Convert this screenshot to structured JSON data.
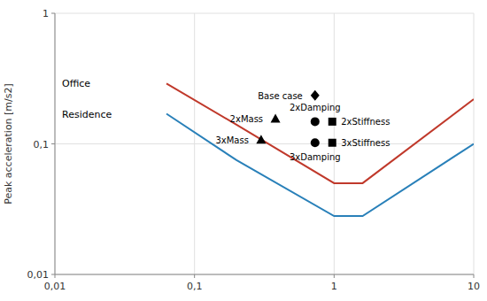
{
  "chart_data": {
    "type": "line",
    "ylabel": "Peak acceleration [m/s2]",
    "log": true,
    "grid": true,
    "xlim": [
      0.01,
      10
    ],
    "ylim": [
      0.01,
      1
    ],
    "xticks": [
      {
        "value": 0.01,
        "label": "0,01"
      },
      {
        "value": 0.1,
        "label": "0,1"
      },
      1,
      10
    ],
    "yticks": [
      {
        "value": 0.01,
        "label": "0,01"
      },
      {
        "value": 0.1,
        "label": "0,1"
      },
      1
    ],
    "series": [
      {
        "name": "Office",
        "type": "line",
        "color": "#c0392b",
        "x": [
          0.063,
          0.2,
          1.0,
          1.6,
          10
        ],
        "values": [
          0.29,
          0.14,
          0.05,
          0.05,
          0.22
        ]
      },
      {
        "name": "Residence",
        "type": "line",
        "color": "#2980b9",
        "x": [
          0.063,
          0.2,
          1.0,
          1.6,
          10
        ],
        "values": [
          0.17,
          0.075,
          0.028,
          0.028,
          0.1
        ]
      },
      {
        "name": "Base case",
        "type": "scatter",
        "marker": "diamond",
        "color": "#000000",
        "x": [
          0.73
        ],
        "values": [
          0.235
        ]
      },
      {
        "name": "2xMass",
        "type": "scatter",
        "marker": "triangle",
        "color": "#000000",
        "x": [
          0.38
        ],
        "values": [
          0.155
        ]
      },
      {
        "name": "3xMass",
        "type": "scatter",
        "marker": "triangle",
        "color": "#000000",
        "x": [
          0.3
        ],
        "values": [
          0.107
        ]
      },
      {
        "name": "2xDamping",
        "type": "scatter",
        "marker": "circle",
        "color": "#000000",
        "x": [
          0.73
        ],
        "values": [
          0.148
        ]
      },
      {
        "name": "3xDamping",
        "type": "scatter",
        "marker": "circle",
        "color": "#000000",
        "x": [
          0.73
        ],
        "values": [
          0.102
        ]
      },
      {
        "name": "2xStiffness",
        "type": "scatter",
        "marker": "square",
        "color": "#000000",
        "x": [
          0.97
        ],
        "values": [
          0.148
        ]
      },
      {
        "name": "3xStiffness",
        "type": "scatter",
        "marker": "square",
        "color": "#000000",
        "x": [
          0.97
        ],
        "values": [
          0.102
        ]
      }
    ]
  }
}
